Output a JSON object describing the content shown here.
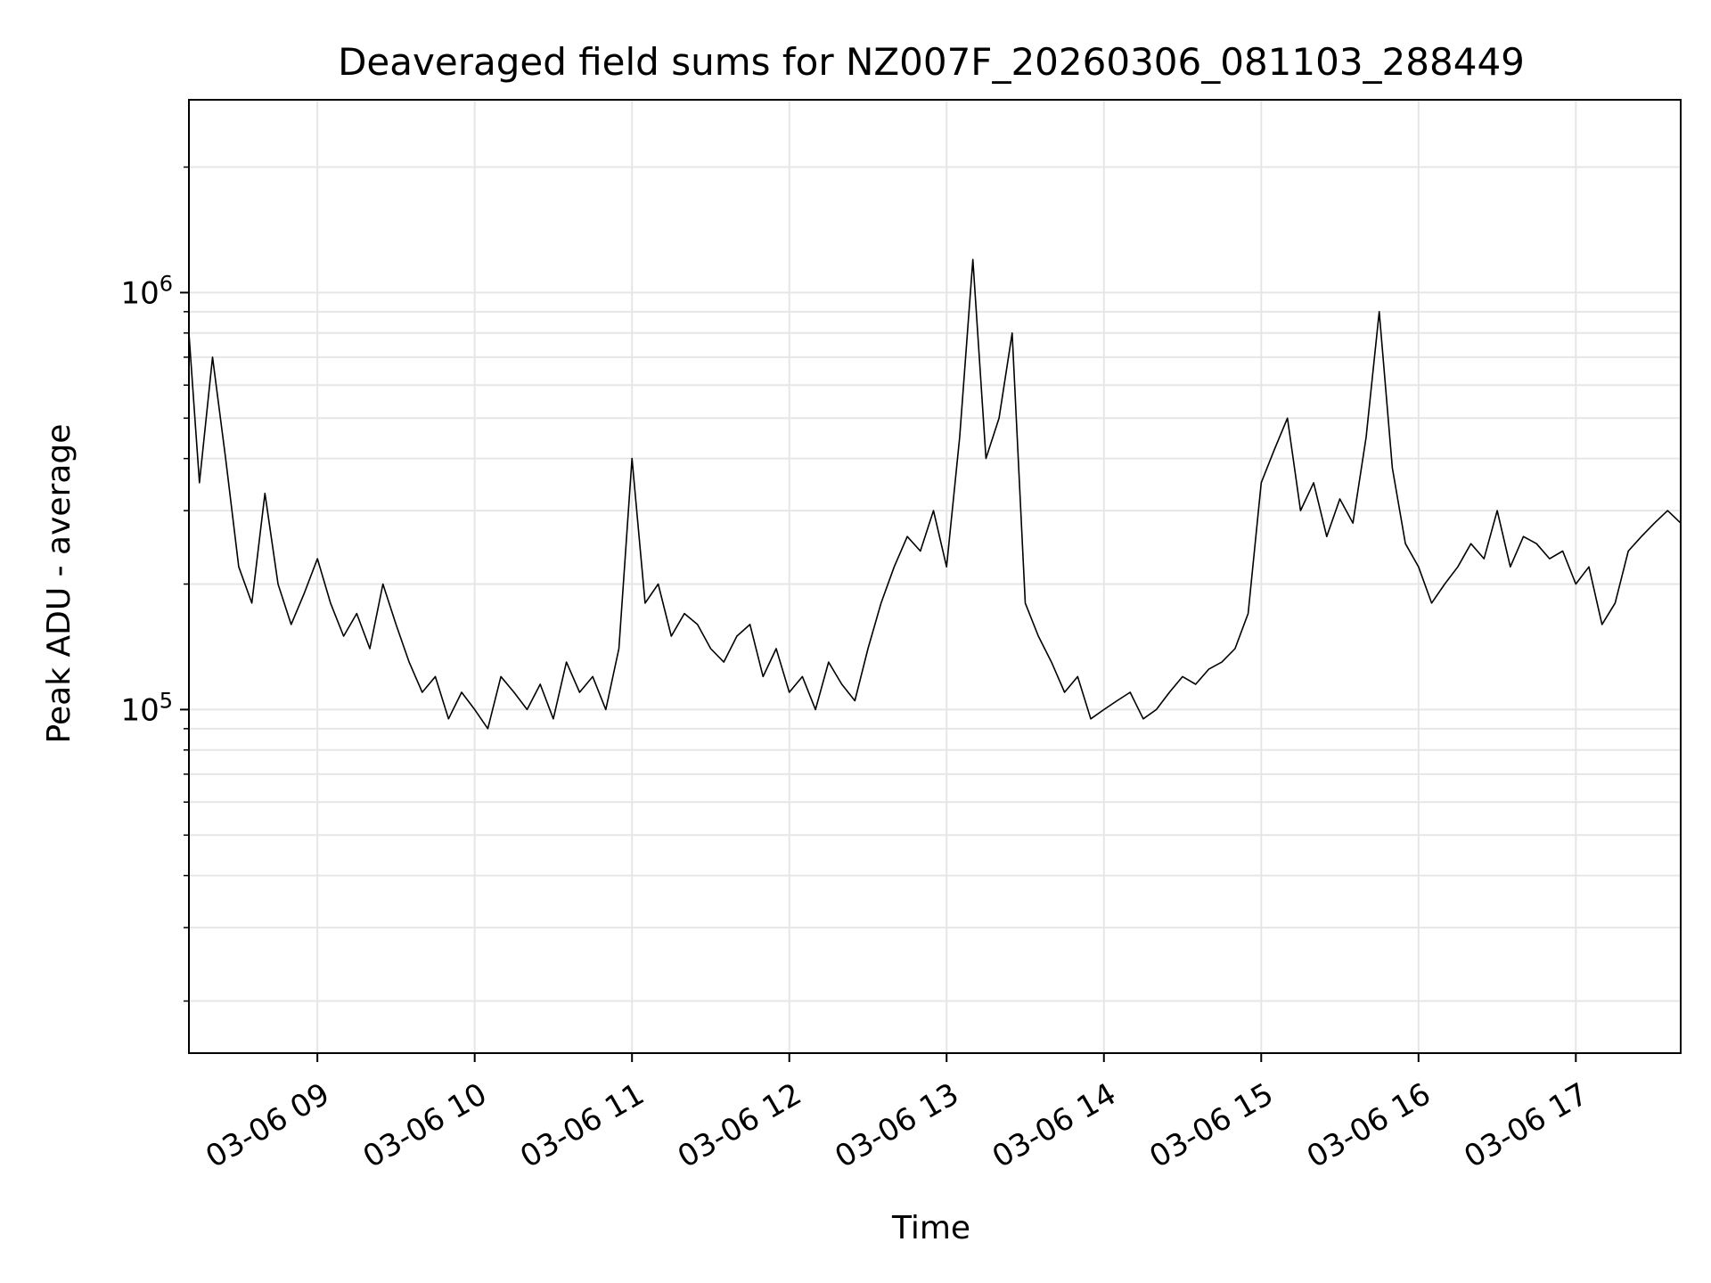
{
  "chart_data": {
    "type": "line",
    "title": "Deaveraged field sums for NZ007F_20260306_081103_288449",
    "xlabel": "Time",
    "ylabel": "Peak ADU - average",
    "yscale": "log",
    "grid": true,
    "line_color": "#000000",
    "xlim": [
      "2026-03-06 08:11",
      "2026-03-06 17:40"
    ],
    "ylim": [
      15000,
      2900000
    ],
    "xticks": [
      {
        "label": "03-06 09",
        "time": "2026-03-06 09:00"
      },
      {
        "label": "03-06 10",
        "time": "2026-03-06 10:00"
      },
      {
        "label": "03-06 11",
        "time": "2026-03-06 11:00"
      },
      {
        "label": "03-06 12",
        "time": "2026-03-06 12:00"
      },
      {
        "label": "03-06 13",
        "time": "2026-03-06 13:00"
      },
      {
        "label": "03-06 14",
        "time": "2026-03-06 14:00"
      },
      {
        "label": "03-06 15",
        "time": "2026-03-06 15:00"
      },
      {
        "label": "03-06 16",
        "time": "2026-03-06 16:00"
      },
      {
        "label": "03-06 17",
        "time": "2026-03-06 17:00"
      }
    ],
    "yticks": [
      {
        "base": "10",
        "exp": "5",
        "value": 100000
      },
      {
        "base": "10",
        "exp": "6",
        "value": 1000000
      }
    ],
    "series": [
      {
        "x": [
          "2026-03-06 08:11",
          "2026-03-06 08:15",
          "2026-03-06 08:20",
          "2026-03-06 08:25",
          "2026-03-06 08:30",
          "2026-03-06 08:35",
          "2026-03-06 08:40",
          "2026-03-06 08:45",
          "2026-03-06 08:50",
          "2026-03-06 08:55",
          "2026-03-06 09:00",
          "2026-03-06 09:05",
          "2026-03-06 09:10",
          "2026-03-06 09:15",
          "2026-03-06 09:20",
          "2026-03-06 09:25",
          "2026-03-06 09:30",
          "2026-03-06 09:35",
          "2026-03-06 09:40",
          "2026-03-06 09:45",
          "2026-03-06 09:50",
          "2026-03-06 09:55",
          "2026-03-06 10:00",
          "2026-03-06 10:05",
          "2026-03-06 10:10",
          "2026-03-06 10:15",
          "2026-03-06 10:20",
          "2026-03-06 10:25",
          "2026-03-06 10:30",
          "2026-03-06 10:35",
          "2026-03-06 10:40",
          "2026-03-06 10:45",
          "2026-03-06 10:50",
          "2026-03-06 10:55",
          "2026-03-06 11:00",
          "2026-03-06 11:05",
          "2026-03-06 11:10",
          "2026-03-06 11:15",
          "2026-03-06 11:20",
          "2026-03-06 11:25",
          "2026-03-06 11:30",
          "2026-03-06 11:35",
          "2026-03-06 11:40",
          "2026-03-06 11:45",
          "2026-03-06 11:50",
          "2026-03-06 11:55",
          "2026-03-06 12:00",
          "2026-03-06 12:05",
          "2026-03-06 12:10",
          "2026-03-06 12:15",
          "2026-03-06 12:20",
          "2026-03-06 12:25",
          "2026-03-06 12:30",
          "2026-03-06 12:35",
          "2026-03-06 12:40",
          "2026-03-06 12:45",
          "2026-03-06 12:50",
          "2026-03-06 12:55",
          "2026-03-06 13:00",
          "2026-03-06 13:05",
          "2026-03-06 13:10",
          "2026-03-06 13:15",
          "2026-03-06 13:20",
          "2026-03-06 13:25",
          "2026-03-06 13:30",
          "2026-03-06 13:35",
          "2026-03-06 13:40",
          "2026-03-06 13:45",
          "2026-03-06 13:50",
          "2026-03-06 13:55",
          "2026-03-06 14:00",
          "2026-03-06 14:05",
          "2026-03-06 14:10",
          "2026-03-06 14:15",
          "2026-03-06 14:20",
          "2026-03-06 14:25",
          "2026-03-06 14:30",
          "2026-03-06 14:35",
          "2026-03-06 14:40",
          "2026-03-06 14:45",
          "2026-03-06 14:50",
          "2026-03-06 14:55",
          "2026-03-06 15:00",
          "2026-03-06 15:05",
          "2026-03-06 15:10",
          "2026-03-06 15:15",
          "2026-03-06 15:20",
          "2026-03-06 15:25",
          "2026-03-06 15:30",
          "2026-03-06 15:35",
          "2026-03-06 15:40",
          "2026-03-06 15:45",
          "2026-03-06 15:50",
          "2026-03-06 15:55",
          "2026-03-06 16:00",
          "2026-03-06 16:05",
          "2026-03-06 16:10",
          "2026-03-06 16:15",
          "2026-03-06 16:20",
          "2026-03-06 16:25",
          "2026-03-06 16:30",
          "2026-03-06 16:35",
          "2026-03-06 16:40",
          "2026-03-06 16:45",
          "2026-03-06 16:50",
          "2026-03-06 16:55",
          "2026-03-06 17:00",
          "2026-03-06 17:05",
          "2026-03-06 17:10",
          "2026-03-06 17:15",
          "2026-03-06 17:20",
          "2026-03-06 17:25",
          "2026-03-06 17:30",
          "2026-03-06 17:35",
          "2026-03-06 17:40"
        ],
        "y": [
          800000,
          350000,
          700000,
          400000,
          220000,
          180000,
          330000,
          200000,
          160000,
          190000,
          230000,
          180000,
          150000,
          170000,
          140000,
          200000,
          160000,
          130000,
          110000,
          120000,
          95000,
          110000,
          100000,
          90000,
          120000,
          110000,
          100000,
          115000,
          95000,
          130000,
          110000,
          120000,
          100000,
          140000,
          400000,
          180000,
          200000,
          150000,
          170000,
          160000,
          140000,
          130000,
          150000,
          160000,
          120000,
          140000,
          110000,
          120000,
          100000,
          130000,
          115000,
          105000,
          140000,
          180000,
          220000,
          260000,
          240000,
          300000,
          220000,
          450000,
          1200000,
          400000,
          500000,
          800000,
          180000,
          150000,
          130000,
          110000,
          120000,
          95000,
          100000,
          105000,
          110000,
          95000,
          100000,
          110000,
          120000,
          115000,
          125000,
          130000,
          140000,
          170000,
          350000,
          420000,
          500000,
          300000,
          350000,
          260000,
          320000,
          280000,
          450000,
          900000,
          380000,
          250000,
          220000,
          180000,
          200000,
          220000,
          250000,
          230000,
          300000,
          220000,
          260000,
          250000,
          230000,
          240000,
          200000,
          220000,
          160000,
          180000,
          240000,
          260000,
          280000,
          300000,
          280000
        ]
      }
    ]
  }
}
